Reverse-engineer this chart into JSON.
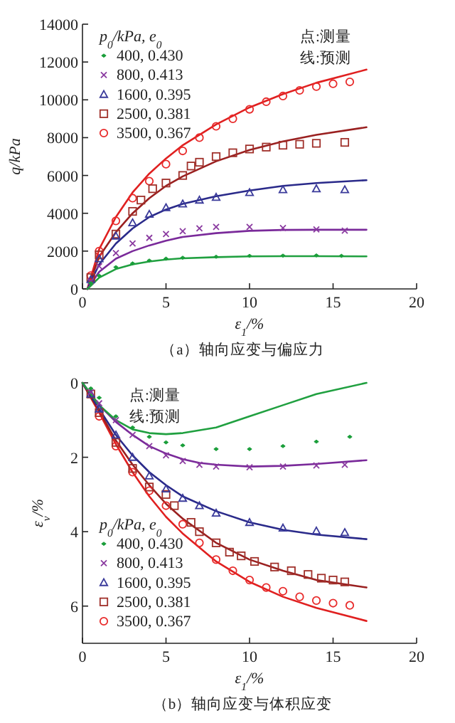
{
  "chart_data": [
    {
      "type": "scatter",
      "title": "（a）轴向应变与偏应力",
      "xlabel": "ε$_{1}$/%",
      "ylabel": "q/kPa",
      "legend_title": "p$_{0}$/kPa, e$_{0}$",
      "legend": "top left",
      "annotations": [
        "点:测量",
        "线:预测"
      ],
      "xlim": [
        0,
        20
      ],
      "xticks": [
        0,
        5,
        10,
        15,
        20
      ],
      "ylim": [
        0,
        14000
      ],
      "yticks": [
        0,
        2000,
        4000,
        6000,
        8000,
        10000,
        12000,
        14000
      ],
      "series": [
        {
          "name": "400, 0.430",
          "color": "#1a9e3a",
          "marker": "diamond",
          "x": [
            0.5,
            1,
            2,
            3,
            4,
            5,
            6,
            8,
            10,
            12,
            14,
            15.5
          ],
          "values": [
            300,
            700,
            1150,
            1350,
            1500,
            1600,
            1650,
            1700,
            1750,
            1760,
            1770,
            1750
          ]
        },
        {
          "name": "800, 0.413",
          "color": "#8a3aa0",
          "marker": "cross",
          "x": [
            0.5,
            1,
            2,
            3,
            4,
            5,
            6,
            7,
            8,
            10,
            12,
            14,
            15.7
          ],
          "values": [
            400,
            1200,
            1900,
            2400,
            2700,
            2900,
            3050,
            3200,
            3280,
            3280,
            3220,
            3150,
            3080
          ]
        },
        {
          "name": "1600, 0.395",
          "color": "#3a3a9a",
          "marker": "triangle",
          "x": [
            0.5,
            1,
            2,
            3,
            4,
            5,
            6,
            7,
            8,
            10,
            12,
            14,
            15.7
          ],
          "values": [
            500,
            1600,
            2800,
            3500,
            3950,
            4300,
            4500,
            4700,
            4850,
            5100,
            5250,
            5300,
            5250
          ]
        },
        {
          "name": "2500, 0.381",
          "color": "#a0302a",
          "marker": "square",
          "x": [
            0.5,
            1,
            2,
            3,
            3.5,
            4.2,
            5,
            6,
            6.5,
            7,
            8,
            9,
            10,
            11,
            12,
            13,
            14,
            15.7
          ],
          "values": [
            600,
            1800,
            2900,
            4100,
            4700,
            5300,
            5600,
            6000,
            6500,
            6700,
            7000,
            7200,
            7400,
            7500,
            7600,
            7650,
            7700,
            7750
          ]
        },
        {
          "name": "3500, 0.367",
          "color": "#e82a2a",
          "marker": "circle",
          "x": [
            0.5,
            1,
            2,
            3,
            4,
            5,
            6,
            7,
            8,
            9,
            10,
            11,
            12,
            13,
            14,
            15,
            16
          ],
          "values": [
            700,
            2000,
            3600,
            4800,
            5700,
            6600,
            7300,
            8000,
            8600,
            9000,
            9500,
            9900,
            10200,
            10500,
            10700,
            10850,
            10950
          ]
        },
        {
          "type": "line",
          "color": "#20a040",
          "x": [
            0.3,
            1,
            2,
            3,
            4,
            5,
            6,
            8,
            10,
            12,
            14,
            17
          ],
          "values": [
            0,
            600,
            1050,
            1300,
            1450,
            1550,
            1620,
            1680,
            1720,
            1730,
            1730,
            1720
          ]
        },
        {
          "type": "line",
          "color": "#7a2a9a",
          "x": [
            0.3,
            1,
            2,
            3,
            4,
            5,
            6,
            8,
            10,
            12,
            14,
            17
          ],
          "values": [
            0,
            900,
            1600,
            2000,
            2300,
            2550,
            2750,
            2950,
            3070,
            3120,
            3130,
            3130
          ]
        },
        {
          "type": "line",
          "color": "#2a2a8a",
          "x": [
            0.3,
            1,
            2,
            3,
            4,
            5,
            6,
            8,
            10,
            12,
            14,
            17
          ],
          "values": [
            0,
            1300,
            2400,
            3200,
            3800,
            4200,
            4500,
            4900,
            5200,
            5450,
            5600,
            5750
          ]
        },
        {
          "type": "line",
          "color": "#9a2020",
          "x": [
            0.3,
            1,
            2,
            3,
            4,
            5,
            6,
            8,
            10,
            12,
            14,
            17
          ],
          "values": [
            0,
            1700,
            3000,
            4000,
            4800,
            5450,
            5950,
            6750,
            7350,
            7800,
            8150,
            8550
          ]
        },
        {
          "type": "line",
          "color": "#e02020",
          "x": [
            0.3,
            1,
            2,
            3,
            4,
            5,
            6,
            8,
            10,
            12,
            14,
            17
          ],
          "values": [
            0,
            2100,
            3800,
            5100,
            6100,
            6900,
            7600,
            8700,
            9600,
            10300,
            10900,
            11600
          ]
        }
      ]
    },
    {
      "type": "scatter",
      "title": "（b）轴向应变与体积应变",
      "xlabel": "ε$_{1}$/%",
      "ylabel": "ε$_{v}$/%",
      "legend_title": "p$_{0}$/kPa, e$_{0}$",
      "legend": "bottom left",
      "annotations": [
        "点:测量",
        "线:预测"
      ],
      "xlim": [
        0,
        20
      ],
      "xticks": [
        0,
        5,
        10,
        15,
        20
      ],
      "ylim": [
        7,
        0
      ],
      "yticks": [
        0,
        2,
        4,
        6
      ],
      "series": [
        {
          "name": "400, 0.430",
          "color": "#1a9e3a",
          "marker": "diamond",
          "x": [
            0.5,
            1,
            2,
            3,
            4,
            5,
            6,
            8,
            10,
            12,
            14,
            16
          ],
          "values": [
            0.15,
            0.4,
            0.9,
            1.2,
            1.45,
            1.6,
            1.68,
            1.78,
            1.78,
            1.7,
            1.58,
            1.45
          ]
        },
        {
          "name": "800, 0.413",
          "color": "#8a3aa0",
          "marker": "cross",
          "x": [
            0.5,
            1,
            2,
            3,
            4,
            5,
            6,
            7,
            8,
            10,
            12,
            14,
            15.7
          ],
          "values": [
            0.25,
            0.55,
            1.0,
            1.4,
            1.7,
            1.95,
            2.1,
            2.2,
            2.25,
            2.27,
            2.25,
            2.22,
            2.2
          ]
        },
        {
          "name": "1600, 0.395",
          "color": "#3a3a9a",
          "marker": "triangle",
          "x": [
            0.5,
            1,
            2,
            3,
            4,
            5,
            6,
            7,
            8,
            10,
            12,
            14,
            15.7
          ],
          "values": [
            0.3,
            0.7,
            1.4,
            2.0,
            2.5,
            2.85,
            3.1,
            3.3,
            3.5,
            3.75,
            3.9,
            3.98,
            4.02
          ]
        },
        {
          "name": "2500, 0.381",
          "color": "#a0302a",
          "marker": "square",
          "x": [
            0.5,
            1,
            2,
            3,
            4,
            5,
            5.5,
            6.5,
            7,
            8,
            8.8,
            9.5,
            10.3,
            11.5,
            12.5,
            13.5,
            14.3,
            15,
            15.7
          ],
          "values": [
            0.3,
            0.8,
            1.6,
            2.3,
            2.8,
            3.0,
            3.3,
            3.75,
            4.0,
            4.3,
            4.55,
            4.65,
            4.8,
            4.95,
            5.05,
            5.15,
            5.25,
            5.3,
            5.35
          ]
        },
        {
          "name": "3500, 0.367",
          "color": "#e82a2a",
          "marker": "circle",
          "x": [
            1,
            2,
            3,
            4,
            5,
            6,
            7,
            8,
            9,
            10,
            11,
            12,
            13,
            14,
            15,
            16
          ],
          "values": [
            0.9,
            1.7,
            2.4,
            2.9,
            3.3,
            3.8,
            4.3,
            4.75,
            5.05,
            5.3,
            5.5,
            5.6,
            5.75,
            5.85,
            5.92,
            5.98
          ]
        },
        {
          "type": "line",
          "color": "#20a040",
          "x": [
            0,
            1,
            2,
            3,
            4,
            5,
            6,
            8,
            10,
            12,
            14,
            17
          ],
          "values": [
            0,
            0.6,
            1.0,
            1.25,
            1.35,
            1.38,
            1.35,
            1.2,
            0.9,
            0.6,
            0.3,
            0
          ]
        },
        {
          "type": "line",
          "color": "#7a2a9a",
          "x": [
            0,
            1,
            2,
            3,
            4,
            5,
            6,
            7,
            8,
            10,
            12,
            14,
            17
          ],
          "values": [
            0,
            0.6,
            1.05,
            1.4,
            1.7,
            1.9,
            2.05,
            2.15,
            2.2,
            2.25,
            2.23,
            2.18,
            2.08
          ]
        },
        {
          "type": "line",
          "color": "#2a2a8a",
          "x": [
            0,
            1,
            2,
            3,
            4,
            5,
            6,
            8,
            10,
            12,
            14,
            17
          ],
          "values": [
            0,
            0.7,
            1.4,
            1.95,
            2.4,
            2.75,
            3.05,
            3.45,
            3.75,
            3.95,
            4.08,
            4.2
          ]
        },
        {
          "type": "line",
          "color": "#9a2020",
          "x": [
            0,
            1,
            2,
            3,
            4,
            5,
            6,
            8,
            10,
            12,
            14,
            17
          ],
          "values": [
            0,
            0.75,
            1.55,
            2.2,
            2.75,
            3.25,
            3.65,
            4.3,
            4.75,
            5.05,
            5.3,
            5.5
          ]
        },
        {
          "type": "line",
          "color": "#e02020",
          "x": [
            0,
            1,
            2,
            3,
            4,
            5,
            6,
            8,
            10,
            12,
            14,
            17
          ],
          "values": [
            0,
            0.8,
            1.65,
            2.4,
            3.05,
            3.6,
            4.05,
            4.8,
            5.35,
            5.75,
            6.05,
            6.4
          ]
        }
      ]
    }
  ]
}
